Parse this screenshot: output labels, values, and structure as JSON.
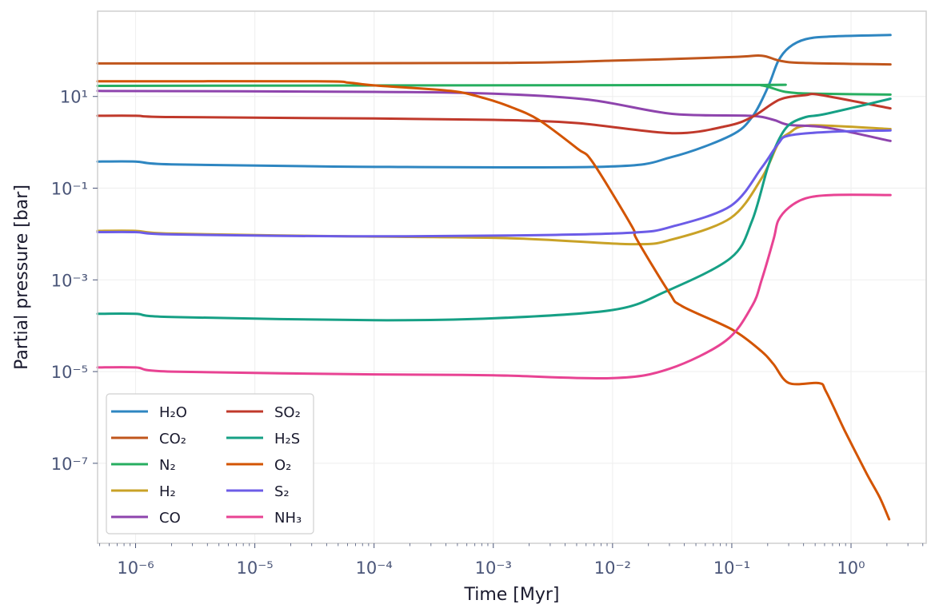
{
  "chart_data": {
    "type": "line",
    "title": "",
    "xlabel": "Time [Myr]",
    "ylabel": "Partial pressure [bar]",
    "xscale": "log",
    "yscale": "log",
    "xlim": [
      4.8e-07,
      4.27
    ],
    "ylim": [
      1.8e-09,
      724
    ],
    "grid": true,
    "legend_placement": "lower-left",
    "legend_columns": 2,
    "xticks": [
      {
        "value": 1e-06,
        "label": "10⁻⁶"
      },
      {
        "value": 1e-05,
        "label": "10⁻⁵"
      },
      {
        "value": 0.0001,
        "label": "10⁻⁴"
      },
      {
        "value": 0.001,
        "label": "10⁻³"
      },
      {
        "value": 0.01,
        "label": "10⁻²"
      },
      {
        "value": 0.1,
        "label": "10⁻¹"
      },
      {
        "value": 1,
        "label": "10⁰"
      }
    ],
    "yticks": [
      {
        "value": 10,
        "label": "10¹"
      },
      {
        "value": 0.1,
        "label": "10⁻¹"
      },
      {
        "value": 0.001,
        "label": "10⁻³"
      },
      {
        "value": 1e-05,
        "label": "10⁻⁵"
      },
      {
        "value": 1e-07,
        "label": "10⁻⁷"
      }
    ],
    "series": [
      {
        "name": "H₂O",
        "color": "#2e86c1",
        "x": [
          4.8e-07,
          1e-06,
          2e-06,
          5.9e-05,
          0.0087,
          0.0316,
          0.098,
          0.148,
          0.2,
          0.245,
          0.302,
          0.417,
          0.692,
          2.14
        ],
        "y": [
          0.38,
          0.38,
          0.33,
          0.295,
          0.295,
          0.48,
          1.41,
          3.55,
          15.5,
          58.9,
          117,
          178,
          204,
          219
        ]
      },
      {
        "name": "CO₂",
        "color": "#c0561c",
        "x": [
          4.8e-07,
          0.001,
          0.01,
          0.1,
          0.178,
          0.251,
          0.398,
          2.14
        ],
        "y": [
          52.5,
          53.7,
          60.3,
          72.4,
          77.6,
          60.3,
          53.7,
          50.1
        ]
      },
      {
        "name": "N₂",
        "color": "#27ae60",
        "x": [
          4.8e-07,
          0.1,
          0.178,
          0.282,
          0.5,
          2.14
        ],
        "y": [
          17,
          17.8,
          17.4,
          12.6,
          11.5,
          11
        ]
      },
      {
        "name": "H₂",
        "color": "#c9a227",
        "x": [
          4.8e-07,
          1e-06,
          2e-06,
          5.9e-05,
          0.0014,
          0.0145,
          0.0316,
          0.098,
          0.178,
          0.245,
          0.302,
          0.457,
          2.14
        ],
        "y": [
          0.0117,
          0.0117,
          0.0102,
          0.0089,
          0.0081,
          0.006,
          0.0076,
          0.0224,
          0.166,
          0.93,
          1.58,
          2.34,
          1.95
        ]
      },
      {
        "name": "CO",
        "color": "#8e44ad",
        "x": [
          4.8e-07,
          0.0001,
          0.001,
          0.0063,
          0.0316,
          0.141,
          0.224,
          0.302,
          0.631,
          2.14
        ],
        "y": [
          13.2,
          12.6,
          11.5,
          8.5,
          4.17,
          3.8,
          3.09,
          2.4,
          2.09,
          1.07
        ]
      },
      {
        "name": "SO₂",
        "color": "#c0392b",
        "x": [
          4.8e-07,
          1e-06,
          2e-06,
          0.0001,
          0.001,
          0.005,
          0.0316,
          0.089,
          0.148,
          0.251,
          0.417,
          0.562,
          2.14
        ],
        "y": [
          3.8,
          3.8,
          3.55,
          3.31,
          3.09,
          2.63,
          1.58,
          2.24,
          3.55,
          8.5,
          10.7,
          10.7,
          5.5
        ]
      },
      {
        "name": "H₂S",
        "color": "#16a085",
        "x": [
          4.8e-07,
          1e-06,
          2e-06,
          0.0001,
          0.001,
          0.01,
          0.028,
          0.098,
          0.148,
          0.2,
          0.245,
          0.302,
          0.417,
          0.617,
          2.14
        ],
        "y": [
          0.000182,
          0.000182,
          0.000155,
          0.000132,
          0.000145,
          0.00022,
          0.00056,
          0.003,
          0.0195,
          0.28,
          1.07,
          2.4,
          3.55,
          4.17,
          8.9
        ]
      },
      {
        "name": "O₂",
        "color": "#d35400",
        "x": [
          4.8e-07,
          3.2e-05,
          6.2e-05,
          0.0001,
          0.00044,
          0.00085,
          0.0014,
          0.0024,
          0.0051,
          0.0068,
          0.0145,
          0.016,
          0.03,
          0.038,
          0.102,
          0.178,
          0.224,
          0.302,
          0.537,
          0.617,
          0.891,
          1.35,
          1.74,
          2.09
        ],
        "y": [
          21.4,
          21.4,
          20,
          17.4,
          13.2,
          9.1,
          5.9,
          3.09,
          0.72,
          0.37,
          0.0148,
          0.0076,
          0.00052,
          0.00027,
          8.1e-05,
          2.75e-05,
          1.45e-05,
          5.6e-06,
          5.6e-06,
          3.7e-06,
          5e-07,
          6e-08,
          1.8e-08,
          6e-09
        ]
      },
      {
        "name": "S₂",
        "color": "#6c5ce7",
        "x": [
          4.8e-07,
          1e-06,
          2e-06,
          5.9e-05,
          0.0014,
          0.0145,
          0.0316,
          0.098,
          0.178,
          0.245,
          0.302,
          0.692,
          2.14
        ],
        "y": [
          0.011,
          0.011,
          0.0098,
          0.0089,
          0.0093,
          0.0107,
          0.0145,
          0.041,
          0.28,
          0.93,
          1.41,
          1.7,
          1.82
        ]
      },
      {
        "name": "NH₃",
        "color": "#e84393",
        "x": [
          4.8e-07,
          1e-06,
          2e-06,
          0.0001,
          0.001,
          0.01,
          0.03,
          0.089,
          0.148,
          0.178,
          0.224,
          0.245,
          0.302,
          0.417,
          0.692,
          2.14
        ],
        "y": [
          1.23e-05,
          1.23e-05,
          1e-05,
          8.7e-06,
          8.3e-06,
          7.2e-06,
          1.15e-05,
          4.7e-05,
          0.00027,
          0.001,
          0.0076,
          0.0195,
          0.038,
          0.06,
          0.071,
          0.071
        ]
      }
    ]
  }
}
